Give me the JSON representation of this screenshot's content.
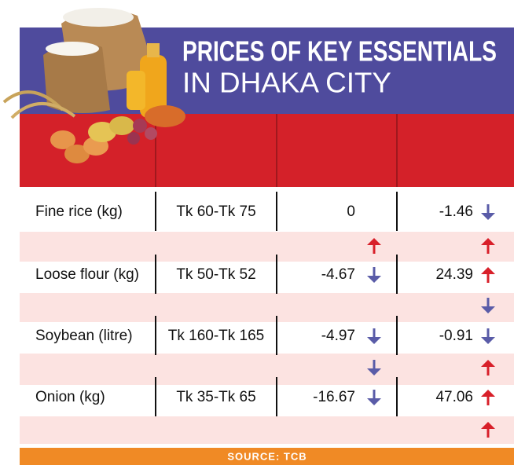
{
  "header": {
    "title_line1": "PRICES OF KEY ESSENTIALS",
    "title_line2": "IN DHAKA CITY"
  },
  "table": {
    "rows": [
      [
        "Fine rice (kg)",
        "Tk 60-Tk 75",
        "0",
        "-1.46"
      ],
      [
        "Loose flour (kg)",
        "Tk 50-Tk 52",
        "-4.67",
        "24.39"
      ],
      [
        "Soybean (litre)",
        "Tk 160-Tk 165",
        "-4.97",
        "-0.91"
      ],
      [
        "Onion (kg)",
        "Tk 35-Tk 65",
        "-16.67",
        "47.06"
      ]
    ]
  },
  "footer": {
    "source": "SOURCE: TCB"
  }
}
